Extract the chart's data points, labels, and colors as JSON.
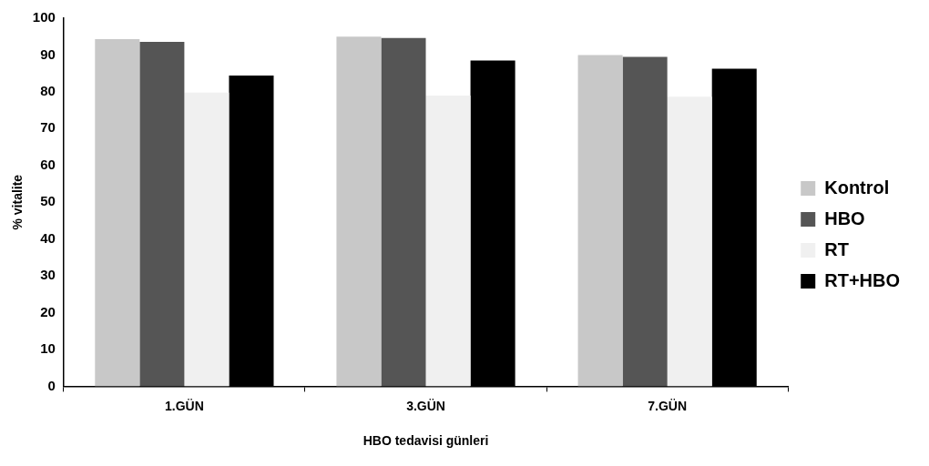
{
  "chart_data": {
    "type": "bar",
    "xlabel": "HBO tedavisi günleri",
    "ylabel": "% vitalite",
    "categories": [
      "1.GÜN",
      "3.GÜN",
      "7.GÜN"
    ],
    "series": [
      {
        "name": "Kontrol",
        "color": "#c8c8c8",
        "values": [
          94.3,
          95.0,
          90.0
        ]
      },
      {
        "name": "HBO",
        "color": "#555555",
        "values": [
          93.6,
          94.6,
          89.5
        ]
      },
      {
        "name": "RT",
        "color": "#f0f0f0",
        "values": [
          79.8,
          79.0,
          78.7
        ]
      },
      {
        "name": "RT+HBO",
        "color": "#000000",
        "values": [
          84.4,
          88.5,
          86.3
        ]
      }
    ],
    "ylim": [
      0,
      100
    ],
    "yticks": [
      0,
      10,
      20,
      30,
      40,
      50,
      60,
      70,
      80,
      90,
      100
    ],
    "grid": false,
    "legend": "right"
  }
}
